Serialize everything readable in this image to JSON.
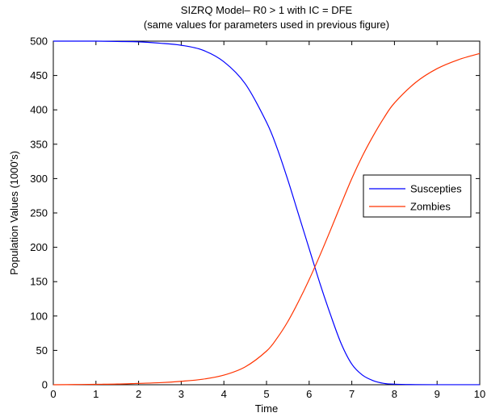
{
  "chart_data": {
    "type": "line",
    "title": "SIZRQ Model– R0 > 1 with IC = DFE",
    "subtitle": "(same values for parameters used in previous figure)",
    "xlabel": "Time",
    "ylabel": "Population Values (1000's)",
    "xlim": [
      0,
      10
    ],
    "ylim": [
      0,
      500
    ],
    "xticks": [
      0,
      1,
      2,
      3,
      4,
      5,
      6,
      7,
      8,
      9,
      10
    ],
    "yticks": [
      0,
      50,
      100,
      150,
      200,
      250,
      300,
      350,
      400,
      450,
      500
    ],
    "grid": false,
    "legend_position": "middle-right",
    "x": [
      0,
      0.5,
      1,
      1.5,
      2,
      2.5,
      3,
      3.5,
      4,
      4.5,
      5,
      5.25,
      5.5,
      5.75,
      6,
      6.25,
      6.5,
      6.75,
      7,
      7.25,
      7.5,
      7.75,
      8,
      8.5,
      9,
      9.5,
      10
    ],
    "series": [
      {
        "name": "Suscepties",
        "color": "#0000ff",
        "values": [
          500,
          500,
          500,
          499.5,
          499,
          497,
          494,
          487,
          470,
          438,
          382,
          344,
          298,
          248,
          198,
          148,
          102,
          60,
          30,
          14,
          6,
          2,
          0.8,
          0.2,
          0.1,
          0.1,
          0.1
        ]
      },
      {
        "name": "Zombies",
        "color": "#ff3300",
        "values": [
          0,
          0.3,
          0.6,
          1,
          2,
          3,
          5,
          8,
          14,
          26,
          49,
          68,
          92,
          121,
          153,
          188,
          225,
          263,
          300,
          333,
          362,
          388,
          410,
          440,
          460,
          473,
          482
        ]
      }
    ]
  }
}
